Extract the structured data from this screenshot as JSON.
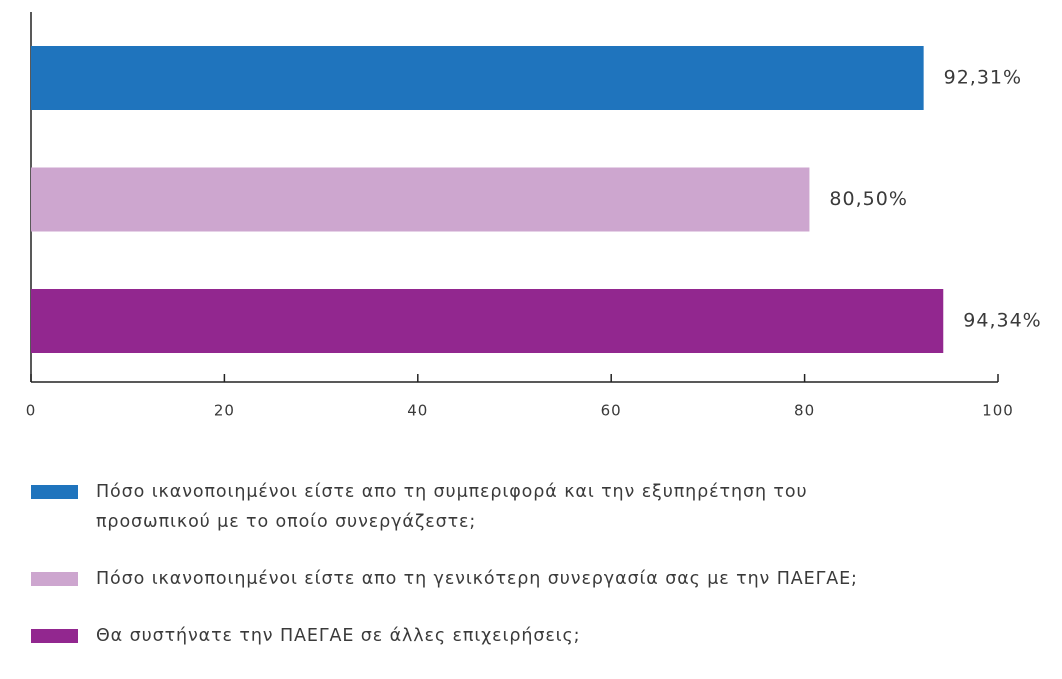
{
  "chart_data": {
    "type": "hbar",
    "series": [
      {
        "name": "Πόσο ικανοποιημένοι είστε απο τη συμπεριφορά και την εξυπηρέτηση του προσωπικού με το οποίο συνεργάζεστε;",
        "color": "#1f74bd",
        "values": [
          92.31
        ],
        "value_labels": [
          "92,31%"
        ]
      },
      {
        "name": "Πόσο ικανοποιημένοι είστε απο τη γενικότερη συνεργασία σας με την ΠΑΕΓΑΕ;",
        "color": "#cda6cf",
        "values": [
          80.5
        ],
        "value_labels": [
          "80,50%"
        ]
      },
      {
        "name": "Θα συστήνατε την ΠΑΕΓΑΕ σε άλλες επιχειρήσεις;",
        "color": "#92278f",
        "values": [
          94.34
        ],
        "value_labels": [
          "94,34%"
        ]
      }
    ],
    "xlim": [
      0,
      100
    ],
    "xticks": [
      0,
      20,
      40,
      60,
      80,
      100
    ]
  }
}
